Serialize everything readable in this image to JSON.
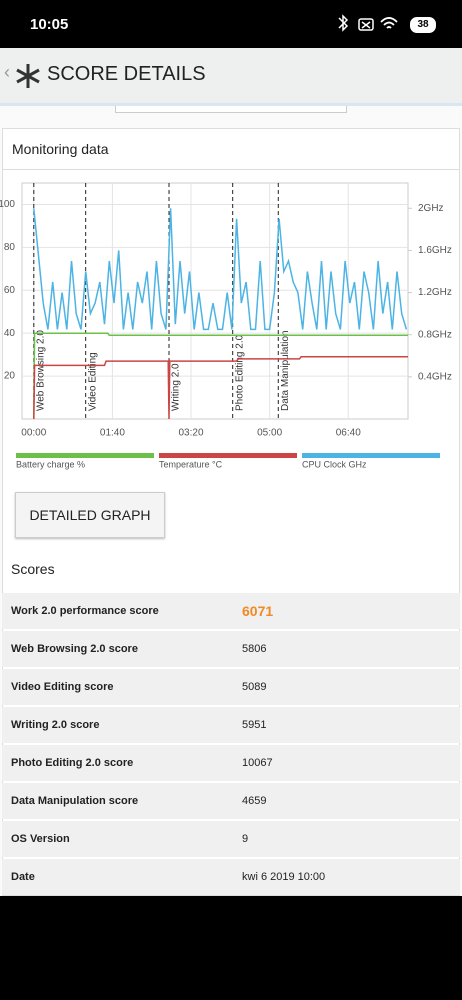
{
  "status_bar": {
    "time": "10:05",
    "battery": "38"
  },
  "app_bar": {
    "title": "SCORE DETAILS"
  },
  "card": {
    "title": "Monitoring data"
  },
  "chart_data": {
    "type": "line",
    "xlim": [
      -15,
      476
    ],
    "xticks": [
      {
        "value": 0,
        "label": "00:00"
      },
      {
        "value": 100,
        "label": "01:40"
      },
      {
        "value": 200,
        "label": "03:20"
      },
      {
        "value": 300,
        "label": "05:00"
      },
      {
        "value": 400,
        "label": "06:40"
      }
    ],
    "ylim": [
      0,
      110
    ],
    "yticks": [
      20,
      40,
      60,
      80,
      100
    ],
    "y2lim": [
      0,
      2.24
    ],
    "y2ticks": [
      {
        "value": 0.4,
        "label": "0.4GHz"
      },
      {
        "value": 0.8,
        "label": "0.8GHz"
      },
      {
        "value": 1.2,
        "label": "1.2GHz"
      },
      {
        "value": 1.6,
        "label": "1.6GHz"
      },
      {
        "value": 2,
        "label": "2GHz"
      }
    ],
    "grid": true,
    "annotations": [
      {
        "x": 0,
        "label": "Web Browsing 2.0"
      },
      {
        "x": 66,
        "label": "Video Editing"
      },
      {
        "x": 172,
        "label": "Writing 2.0"
      },
      {
        "x": 253,
        "label": "Photo Editing 2.0"
      },
      {
        "x": 311,
        "label": "Data Manipulation"
      }
    ],
    "series": [
      {
        "name": "Battery charge %",
        "color": "#6cc04a",
        "x": [
          0,
          1,
          94,
          96,
          476
        ],
        "values": [
          0,
          40,
          40,
          39,
          39
        ]
      },
      {
        "name": "Temperature °C",
        "color": "#cc4444",
        "x": [
          0,
          1,
          90,
          92,
          171,
          172,
          173,
          258,
          260,
          338,
          340,
          476
        ],
        "values": [
          0,
          25,
          25,
          27,
          27,
          0,
          27,
          27,
          28,
          28,
          29,
          29
        ]
      },
      {
        "name": "CPU Clock GHz",
        "color": "#4cb4e4",
        "axis": "y2",
        "x": [
          0,
          6,
          12,
          18,
          24,
          30,
          36,
          42,
          48,
          54,
          60,
          66,
          72,
          78,
          84,
          90,
          96,
          102,
          108,
          114,
          120,
          126,
          132,
          138,
          144,
          150,
          156,
          162,
          168,
          174,
          180,
          186,
          192,
          198,
          204,
          210,
          216,
          222,
          228,
          234,
          240,
          246,
          252,
          258,
          264,
          270,
          276,
          282,
          288,
          294,
          300,
          306,
          312,
          318,
          324,
          330,
          336,
          342,
          348,
          354,
          360,
          366,
          372,
          378,
          384,
          390,
          396,
          402,
          408,
          414,
          420,
          426,
          432,
          438,
          444,
          450,
          456,
          462,
          468,
          474
        ],
        "values": [
          2.0,
          1.55,
          1.1,
          0.85,
          1.3,
          0.85,
          1.2,
          0.85,
          1.5,
          1.0,
          0.85,
          1.4,
          1.0,
          1.1,
          1.3,
          0.9,
          1.5,
          1.1,
          1.6,
          0.85,
          1.2,
          0.85,
          1.3,
          1.1,
          1.4,
          0.85,
          1.5,
          1.0,
          0.85,
          2.0,
          0.9,
          1.5,
          1.0,
          1.4,
          0.85,
          1.2,
          0.85,
          0.85,
          1.1,
          0.85,
          0.85,
          1.2,
          0.85,
          1.9,
          1.1,
          1.3,
          0.85,
          0.85,
          1.5,
          0.85,
          0.85,
          1.2,
          1.9,
          1.4,
          1.5,
          1.3,
          1.2,
          0.85,
          1.4,
          1.1,
          0.85,
          1.5,
          0.85,
          1.4,
          1.0,
          0.85,
          1.5,
          1.1,
          1.3,
          0.85,
          1.4,
          1.2,
          0.85,
          1.5,
          1.0,
          1.3,
          0.85,
          1.4,
          1.0,
          0.85
        ]
      }
    ]
  },
  "button": {
    "label": "DETAILED GRAPH"
  },
  "scores": {
    "title": "Scores",
    "rows": [
      [
        "Work 2.0 performance score",
        6071
      ],
      [
        "Web Browsing 2.0 score",
        5806
      ],
      [
        "Video Editing score",
        5089
      ],
      [
        "Writing 2.0 score",
        5951
      ],
      [
        "Photo Editing 2.0 score",
        10067
      ],
      [
        "Data Manipulation score",
        4659
      ],
      [
        "OS Version",
        9
      ],
      [
        "Date",
        "kwi 6 2019 10:00"
      ]
    ]
  }
}
